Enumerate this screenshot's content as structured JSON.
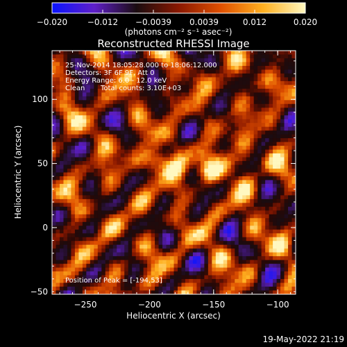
{
  "chart_data": {
    "type": "heatmap",
    "title": "Reconstructed RHESSI Image",
    "xlabel": "Heliocentric X (arcsec)",
    "ylabel": "Heliocentric Y (arcsec)",
    "xlim": [
      -276,
      -86
    ],
    "ylim": [
      -52,
      138
    ],
    "xticks": [
      -250,
      -200,
      -150,
      -100
    ],
    "yticks": [
      0,
      50,
      100
    ],
    "colorbar": {
      "min": -0.02,
      "max": 0.02,
      "ticks": [
        "−0.020",
        "−0.012",
        "−0.0039",
        "0.0039",
        "0.012",
        "0.020"
      ],
      "unit_label": "(photons cm⁻² s⁻¹ asec⁻²)",
      "colors": [
        "#0a14ff",
        "#5f1fc8",
        "#1a0c10",
        "#8a1800",
        "#e05000",
        "#ffb020",
        "#fff8c0"
      ]
    },
    "annotations": {
      "time": "25-Nov-2014 18:05:28.000 to 18:06:12.000",
      "detectors": "Detectors: 3F 6F 9F, Att 0",
      "energy": "Energy Range: 6.0 - 12.0 keV",
      "method": "Clean",
      "counts": "Total counts: 3.10E+03",
      "peak": "Position of Peak = [-194,53]"
    },
    "peak": {
      "x": -194,
      "y": 53,
      "value": 0.02
    },
    "sources": [
      {
        "x": -194,
        "y": 53,
        "value": 0.02
      },
      {
        "x": -178,
        "y": 47,
        "value": 0.012
      },
      {
        "x": -155,
        "y": 43,
        "value": 0.011
      },
      {
        "x": -140,
        "y": 50,
        "value": 0.01
      },
      {
        "x": -126,
        "y": 52,
        "value": 0.009
      },
      {
        "x": -112,
        "y": 112,
        "value": 0.006
      }
    ],
    "grid": false
  },
  "timestamp": "19-May-2022 21:19"
}
